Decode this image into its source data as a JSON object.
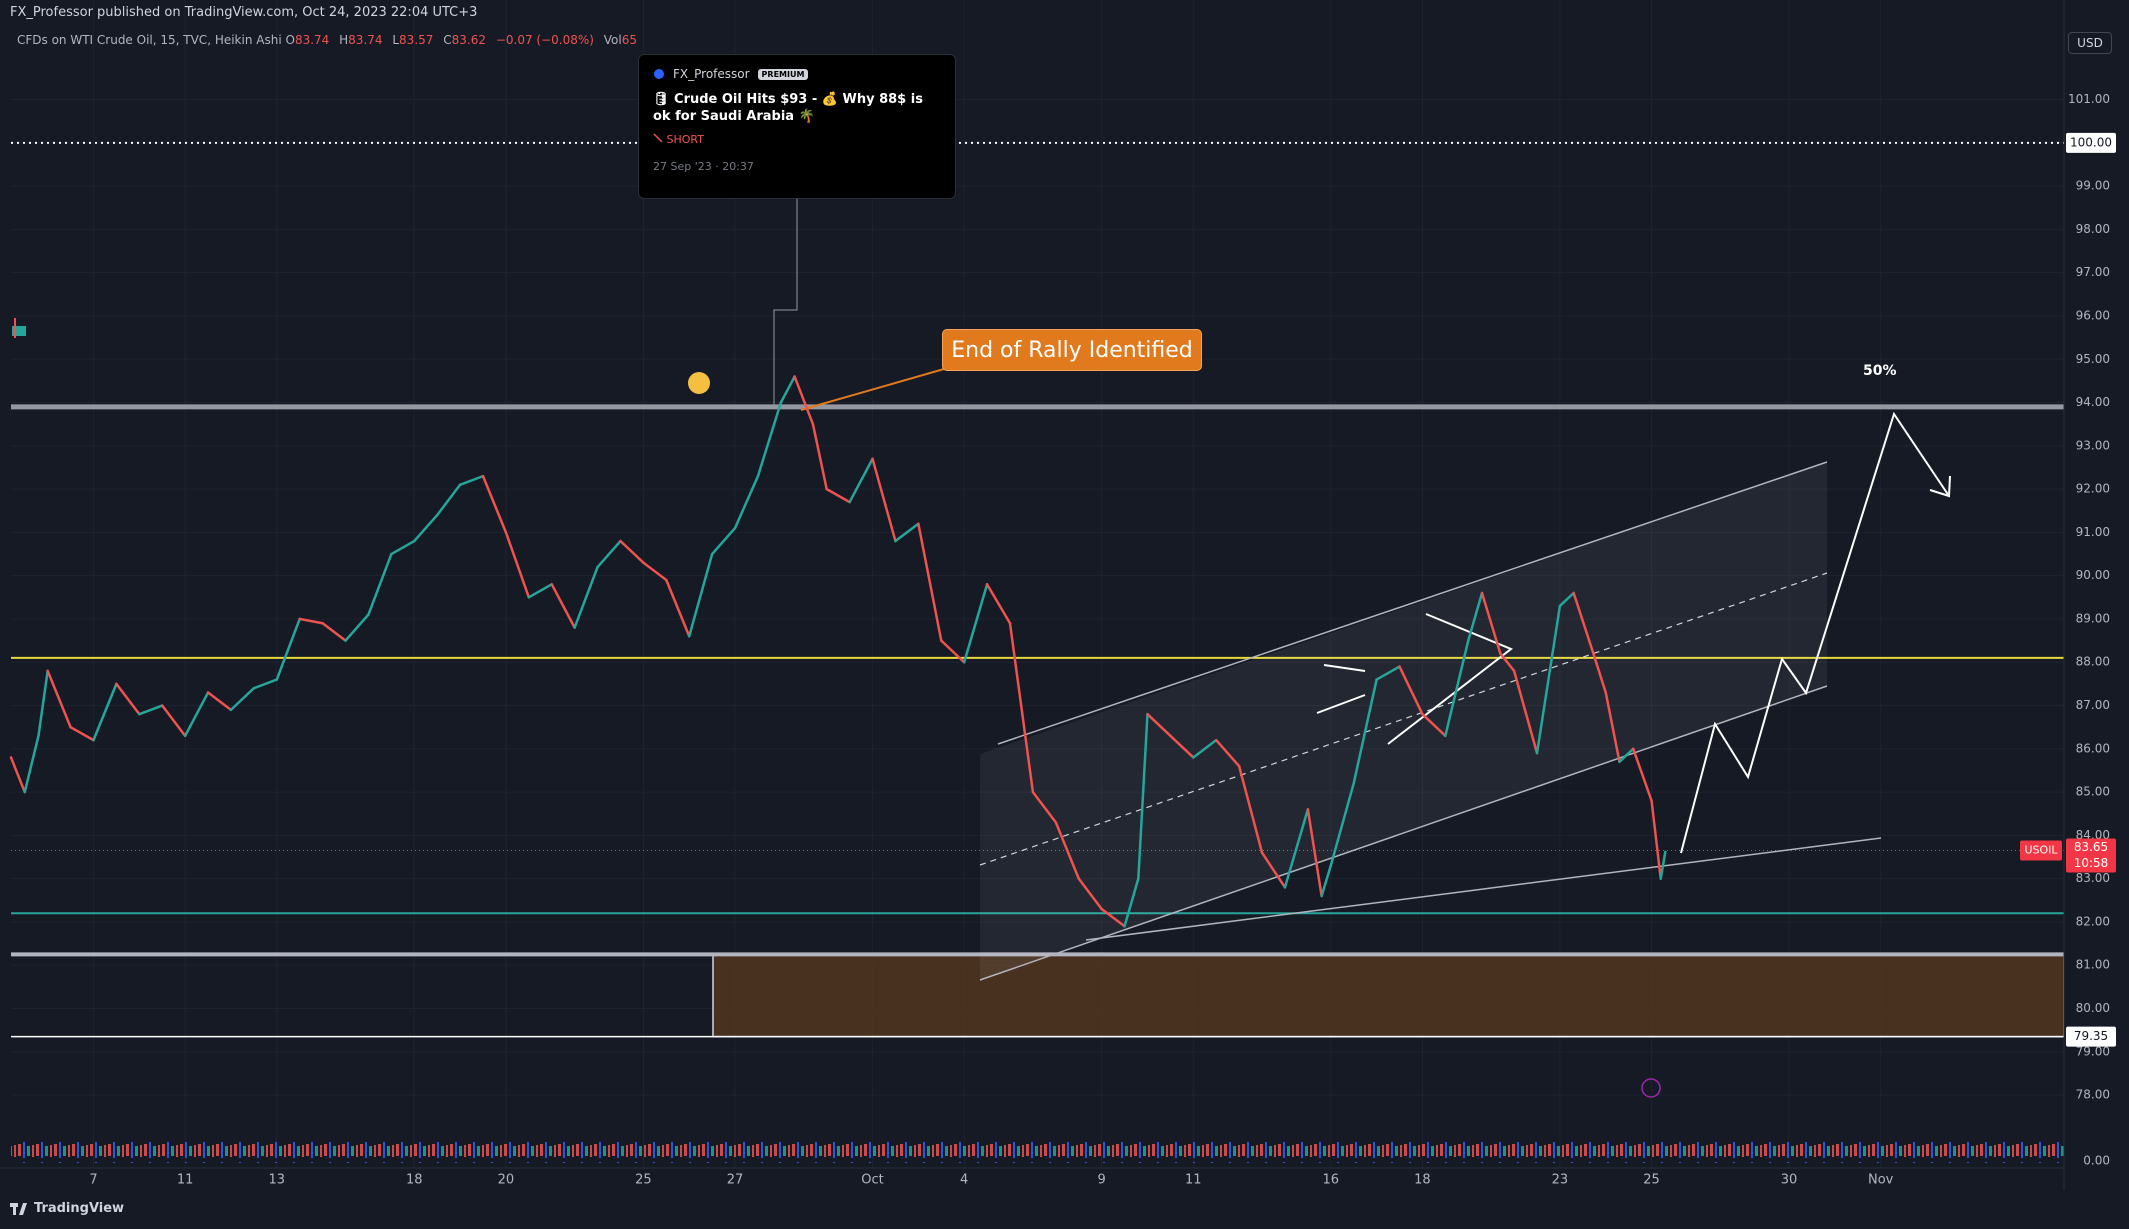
{
  "header": {
    "publisher": "FX_Professor published on TradingView.com, Oct 24, 2023 22:04 UTC+3",
    "symbol": "CFDs on WTI Crude Oil, 15, TVC, Heikin Ashi",
    "ohlc": [
      {
        "label": "O",
        "value": "83.74"
      },
      {
        "label": "H",
        "value": "83.74"
      },
      {
        "label": "L",
        "value": "83.57"
      },
      {
        "label": "C",
        "value": "83.62"
      }
    ],
    "change": "−0.07 (−0.08%)",
    "volume_label": "Vol",
    "volume": "65",
    "currency": "USD"
  },
  "idea_card": {
    "author": "FX_Professor",
    "badge": "PREMIUM",
    "title": "🛢 Crude Oil Hits $93 - 💰 Why 88$ is ok for Saudi Arabia 🌴",
    "direction": "SHORT",
    "date": "27 Sep '23 · 20:37"
  },
  "callout": "End of Rally Identified",
  "target_label": "50%",
  "indicator_zero": "0.00",
  "footer": "TradingView",
  "chart_data": {
    "type": "line",
    "x": [
      -1.8,
      -1.5,
      -1.2,
      -1,
      -0.5,
      0,
      0.5,
      1,
      1.5,
      2,
      2.5,
      3,
      3.5,
      4,
      4.5,
      5,
      5.5,
      6,
      6.5,
      7,
      7.5,
      8,
      8.5,
      9,
      9.5,
      10,
      10.5,
      11,
      11.5,
      12,
      12.5,
      13,
      13.5,
      14,
      14.5,
      15,
      15.3,
      15.7,
      16,
      16.5,
      17,
      17.5,
      18,
      18.5,
      19,
      19.5,
      20,
      20.5,
      21,
      21.5,
      22,
      22.5,
      22.8,
      23,
      23.5,
      24,
      24.5,
      25,
      25.5,
      26,
      26.5,
      26.8,
      27,
      27.5,
      28,
      28.5,
      29,
      29.5,
      30,
      30.3,
      30.7,
      31,
      31.5,
      32,
      32.3,
      32.7,
      33,
      33.3,
      33.6,
      34,
      34.2,
      34.3
    ],
    "series": [
      {
        "name": "USOIL",
        "up_color": "#26a69a",
        "down_color": "#ef5350",
        "values": [
          85.8,
          85.0,
          86.3,
          87.8,
          86.5,
          86.2,
          87.5,
          86.8,
          87.0,
          86.3,
          87.3,
          86.9,
          87.4,
          87.6,
          89.0,
          88.9,
          88.5,
          89.1,
          90.5,
          90.8,
          91.4,
          92.1,
          92.3,
          91.0,
          89.5,
          89.8,
          88.8,
          90.2,
          90.8,
          90.3,
          89.9,
          88.6,
          90.5,
          91.1,
          92.3,
          94.0,
          94.6,
          93.5,
          92.0,
          91.7,
          92.7,
          90.8,
          91.2,
          88.5,
          88.0,
          89.8,
          88.9,
          85.0,
          84.3,
          83.0,
          82.3,
          81.9,
          83.0,
          86.8,
          86.3,
          85.8,
          86.2,
          85.6,
          83.6,
          82.8,
          84.6,
          82.6,
          83.3,
          85.2,
          87.6,
          87.9,
          86.8,
          86.3,
          88.5,
          89.6,
          88.2,
          87.8,
          85.9,
          89.3,
          89.6,
          88.3,
          87.3,
          85.7,
          86.0,
          84.8,
          83.0,
          83.62
        ]
      }
    ],
    "last_price": {
      "value": 83.65,
      "label": "83.65",
      "countdown": "10:58",
      "color": "#f23645"
    },
    "levels": [
      {
        "value": 100,
        "label": "100.00",
        "color": "#ffffff",
        "style": "dotted"
      },
      {
        "value": 93.9,
        "color": "#9598a1",
        "style": "thick"
      },
      {
        "value": 88.1,
        "color": "#e8d83a",
        "style": "solid"
      },
      {
        "value": 82.2,
        "color": "#26a69a",
        "style": "solid"
      },
      {
        "value": 81.25,
        "color": "#b2b5be",
        "style": "zone-top"
      },
      {
        "value": 79.35,
        "label": "79.35",
        "color": "#ffffff",
        "style": "zone-bottom"
      }
    ],
    "zone_color": "#5a3a1e",
    "xlim": [
      -1.8,
      43
    ],
    "ylim": [
      76.5,
      103.3
    ],
    "xticks": [
      {
        "value": 0,
        "label": "7"
      },
      {
        "value": 2,
        "label": "11"
      },
      {
        "value": 4,
        "label": "13"
      },
      {
        "value": 7,
        "label": "18"
      },
      {
        "value": 9,
        "label": "20"
      },
      {
        "value": 12,
        "label": "25"
      },
      {
        "value": 14,
        "label": "27"
      },
      {
        "value": 17,
        "label": "Oct"
      },
      {
        "value": 19,
        "label": "4"
      },
      {
        "value": 22,
        "label": "9"
      },
      {
        "value": 24,
        "label": "11"
      },
      {
        "value": 27,
        "label": "16"
      },
      {
        "value": 29,
        "label": "18"
      },
      {
        "value": 32,
        "label": "23"
      },
      {
        "value": 34,
        "label": "25"
      },
      {
        "value": 37,
        "label": "30"
      },
      {
        "value": 39,
        "label": "Nov"
      }
    ],
    "yticks": [
      {
        "value": 78,
        "label": "78.00"
      },
      {
        "value": 79,
        "label": "79.00"
      },
      {
        "value": 80,
        "label": "80.00"
      },
      {
        "value": 81,
        "label": "81.00"
      },
      {
        "value": 82,
        "label": "82.00"
      },
      {
        "value": 83,
        "label": "83.00"
      },
      {
        "value": 84,
        "label": "84.00"
      },
      {
        "value": 85,
        "label": "85.00"
      },
      {
        "value": 86,
        "label": "86.00"
      },
      {
        "value": 87,
        "label": "87.00"
      },
      {
        "value": 88,
        "label": "88.00"
      },
      {
        "value": 89,
        "label": "89.00"
      },
      {
        "value": 90,
        "label": "90.00"
      },
      {
        "value": 91,
        "label": "91.00"
      },
      {
        "value": 92,
        "label": "92.00"
      },
      {
        "value": 93,
        "label": "93.00"
      },
      {
        "value": 94,
        "label": "94.00"
      },
      {
        "value": 95,
        "label": "95.00"
      },
      {
        "value": 96,
        "label": "96.00"
      },
      {
        "value": 97,
        "label": "97.00"
      },
      {
        "value": 98,
        "label": "98.00"
      },
      {
        "value": 99,
        "label": "99.00"
      },
      {
        "value": 100,
        "label": "100.00"
      },
      {
        "value": 101,
        "label": "101.00"
      }
    ],
    "grid": true
  }
}
